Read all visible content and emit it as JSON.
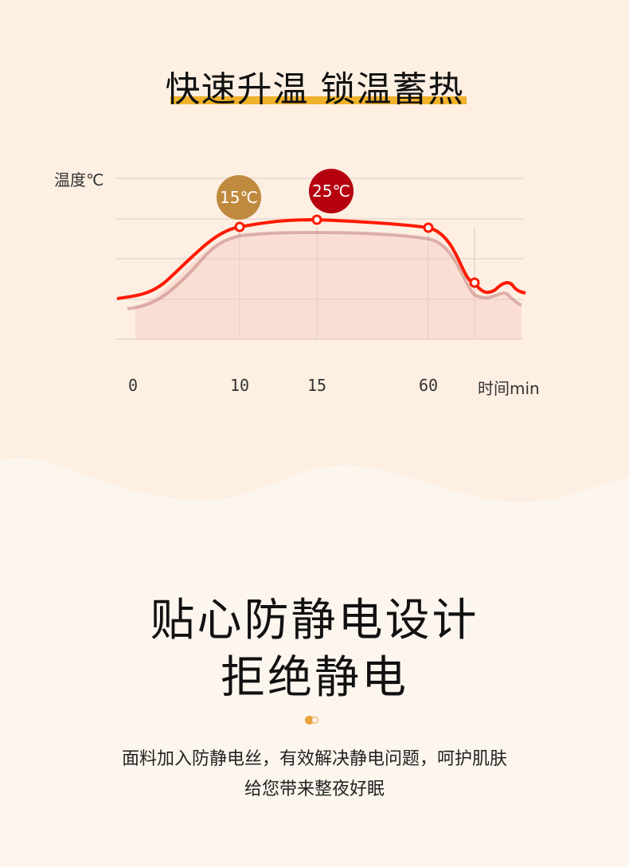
{
  "header": {
    "title": "快速升温 锁温蓄热"
  },
  "chart_data": {
    "type": "line",
    "ylabel": "温度℃",
    "xlabel": "时间min",
    "x_ticks": [
      "0",
      "10",
      "15",
      "60"
    ],
    "points": [
      {
        "x": "10",
        "label": "15℃",
        "color": "#c08a3e"
      },
      {
        "x": "15",
        "label": "25℃",
        "color": "#b5000f"
      },
      {
        "x": "60",
        "label": ""
      }
    ],
    "grid": true,
    "line_color": "#ff1a00"
  },
  "section2": {
    "title_line1": "贴心防静电设计",
    "title_line2": "拒绝静电",
    "desc_line1": "面料加入防静电丝，有效解决静电问题，呵护肌肤",
    "desc_line2": "给您带来整夜好眠"
  },
  "colors": {
    "top_bg": "#fdefe2",
    "bottom_bg": "#fdf6ee",
    "accent": "#f0b22a"
  }
}
